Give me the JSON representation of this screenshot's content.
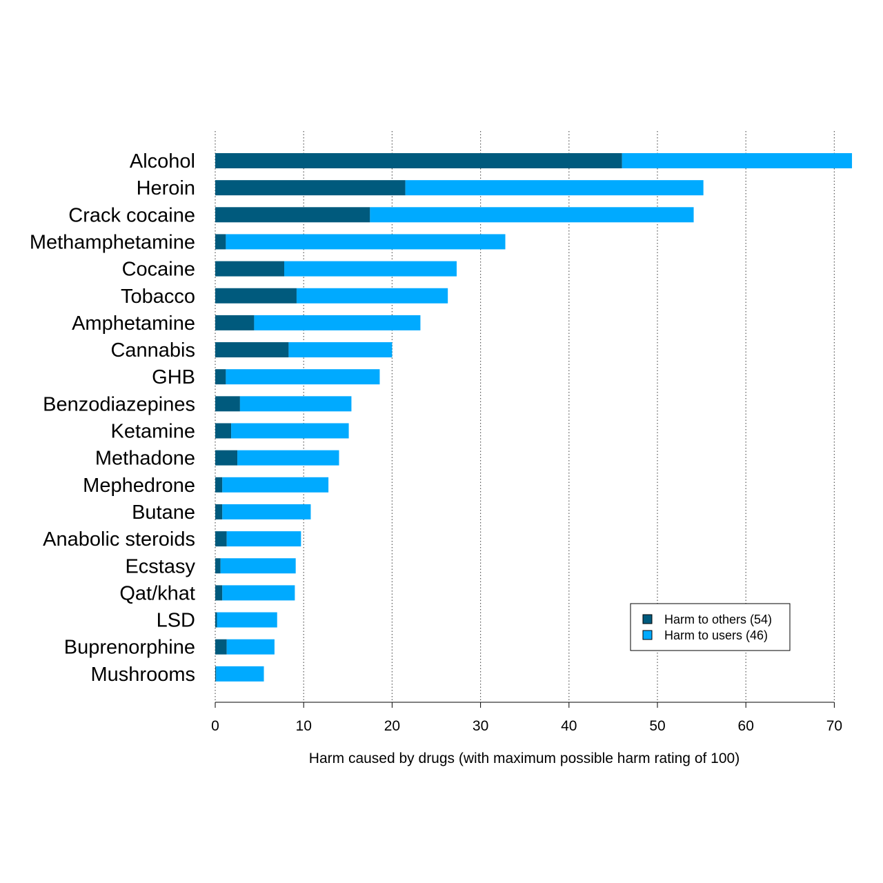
{
  "chart_data": {
    "type": "bar",
    "orientation": "horizontal",
    "stacked": true,
    "xlabel": "Harm caused by drugs (with maximum possible harm rating of 100)",
    "xlim": [
      0,
      72
    ],
    "xticks": [
      0,
      10,
      20,
      30,
      40,
      50,
      60,
      70
    ],
    "grid": "vertical dotted",
    "legend_position": "bottom-right",
    "categories": [
      "Alcohol",
      "Heroin",
      "Crack cocaine",
      "Methamphetamine",
      "Cocaine",
      "Tobacco",
      "Amphetamine",
      "Cannabis",
      "GHB",
      "Benzodiazepines",
      "Ketamine",
      "Methadone",
      "Mephedrone",
      "Butane",
      "Anabolic steroids",
      "Ecstasy",
      "Qat/khat",
      "LSD",
      "Buprenorphine",
      "Mushrooms"
    ],
    "series": [
      {
        "name": "Harm to others (54)",
        "color": "#005a7d",
        "values": [
          46,
          21.5,
          17.5,
          1.2,
          7.8,
          9.2,
          4.4,
          8.3,
          1.2,
          2.8,
          1.8,
          2.5,
          0.8,
          0.8,
          1.3,
          0.6,
          0.8,
          0.2,
          1.3,
          0.1
        ]
      },
      {
        "name": "Harm to users (46)",
        "color": "#00aaff",
        "values": [
          26,
          33.7,
          36.6,
          31.6,
          19.5,
          17.1,
          18.8,
          11.7,
          17.4,
          12.6,
          13.3,
          11.5,
          12.0,
          10.0,
          8.4,
          8.5,
          8.2,
          6.8,
          5.4,
          5.4
        ]
      }
    ]
  }
}
